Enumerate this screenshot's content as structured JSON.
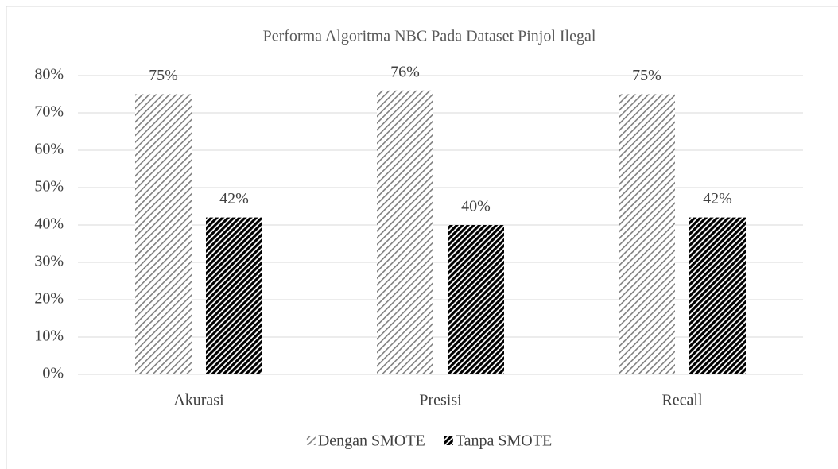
{
  "chart_data": {
    "type": "bar",
    "title": "Performa Algoritma NBC Pada Dataset Pinjol Ilegal",
    "categories": [
      "Akurasi",
      "Presisi",
      "Recall"
    ],
    "series": [
      {
        "name": "Dengan SMOTE",
        "color": "#7f7f7f",
        "pattern": "light-upward-diagonal",
        "values": [
          75,
          76,
          75
        ],
        "value_labels": [
          "75%",
          "76%",
          "75%"
        ]
      },
      {
        "name": "Tanpa SMOTE",
        "color": "#000000",
        "pattern": "dark-upward-diagonal",
        "values": [
          42,
          40,
          42
        ],
        "value_labels": [
          "42%",
          "40%",
          "42%"
        ]
      }
    ],
    "ylim": [
      0,
      80
    ],
    "yticks": [
      {
        "value": 0,
        "label": "0%"
      },
      {
        "value": 10,
        "label": "10%"
      },
      {
        "value": 20,
        "label": "20%"
      },
      {
        "value": 30,
        "label": "30%"
      },
      {
        "value": 40,
        "label": "40%"
      },
      {
        "value": 50,
        "label": "50%"
      },
      {
        "value": 60,
        "label": "60%"
      },
      {
        "value": 70,
        "label": "70%"
      },
      {
        "value": 80,
        "label": "80%"
      }
    ],
    "grid": true,
    "legend": "bottom"
  }
}
